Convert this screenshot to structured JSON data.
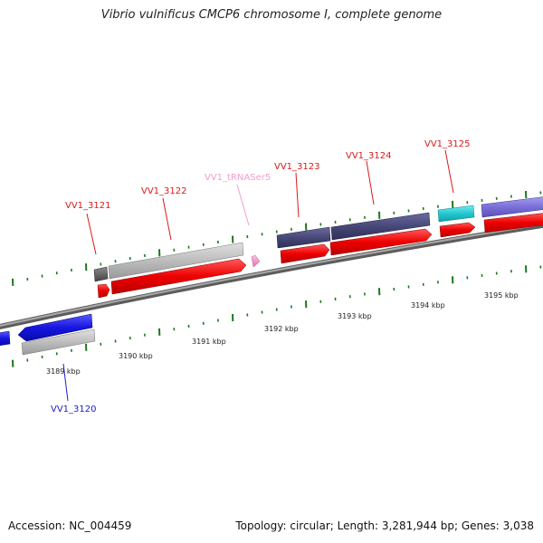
{
  "title": "Vibrio vulnificus CMCP6 chromosome I, complete genome",
  "footer": {
    "accession": "Accession: NC_004459",
    "summary": "Topology: circular; Length: 3,281,944 bp; Genes: 3,038"
  },
  "genes": [
    {
      "name": "VV1_3120",
      "color": "#1a1ad0"
    },
    {
      "name": "VV1_3121",
      "color": "#d81b1b"
    },
    {
      "name": "VV1_3122",
      "color": "#d81b1b"
    },
    {
      "name": "VV1_tRNASer5",
      "color": "#f0a0d0"
    },
    {
      "name": "VV1_3123",
      "color": "#d81b1b"
    },
    {
      "name": "VV1_3124",
      "color": "#d81b1b"
    },
    {
      "name": "VV1_3125",
      "color": "#d81b1b"
    }
  ],
  "scale_labels": [
    "3189 kbp",
    "3190 kbp",
    "3191 kbp",
    "3192 kbp",
    "3193 kbp",
    "3194 kbp",
    "3195 kbp"
  ],
  "colors": {
    "cds_red": "#ee0000",
    "gene_gray": "#bdbdbd",
    "gene_dark": "#484878",
    "gene_cyan": "#22c8d0",
    "gene_purple": "#7a70d8",
    "gene_blue": "#1616e0",
    "trna_pink": "#f49ccc",
    "tick_green": "#1a7a1a",
    "backbone": "#8c8c8c"
  }
}
